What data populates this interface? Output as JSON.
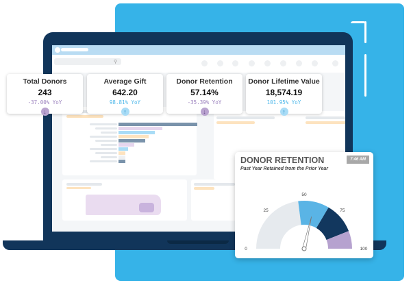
{
  "kpis": [
    {
      "title": "Total Donors",
      "value": "243",
      "yoy": "-37.00% YoY",
      "trend": "down"
    },
    {
      "title": "Average Gift",
      "value": "642.20",
      "yoy": "98.81% YoY",
      "trend": "up"
    },
    {
      "title": "Donor Retention",
      "value": "57.14%",
      "yoy": "-35.39% YoY",
      "trend": "down"
    },
    {
      "title": "Donor Lifetime Value",
      "value": "18,574.19",
      "yoy": "101.95% YoY",
      "trend": "up"
    }
  ],
  "arrows": {
    "up": "↑",
    "down": "↓"
  },
  "colors": {
    "brand_blue": "#36b3e8",
    "navy": "#11355a",
    "down": "#9a80bd",
    "up": "#4fb8ea"
  },
  "gauge": {
    "title": "DONOR RETENTION",
    "subtitle": "Past Year Retained from the Prior Year",
    "time": "7:46 AM",
    "value": 57.14,
    "min": 0,
    "max": 100,
    "ticks": [
      "0",
      "25",
      "50",
      "75",
      "100"
    ],
    "bands": [
      {
        "from": 0,
        "to": 46,
        "color": "#e6eaee"
      },
      {
        "from": 46,
        "to": 67,
        "color": "#5ab4e5"
      },
      {
        "from": 67,
        "to": 88,
        "color": "#12375e"
      },
      {
        "from": 88,
        "to": 100,
        "color": "#b6a2cf"
      }
    ]
  },
  "background_chart": {
    "bar_colors": [
      "#7a93ab",
      "#e6d6ee",
      "#a9dcf6",
      "#fde3bf",
      "#7a93ab",
      "#e6d6ee",
      "#a9dcf6",
      "#fde3bf",
      "#eef0f2",
      "#7a93ab"
    ],
    "values": [
      100,
      56,
      46,
      38,
      34,
      20,
      12,
      9,
      9,
      9
    ]
  }
}
